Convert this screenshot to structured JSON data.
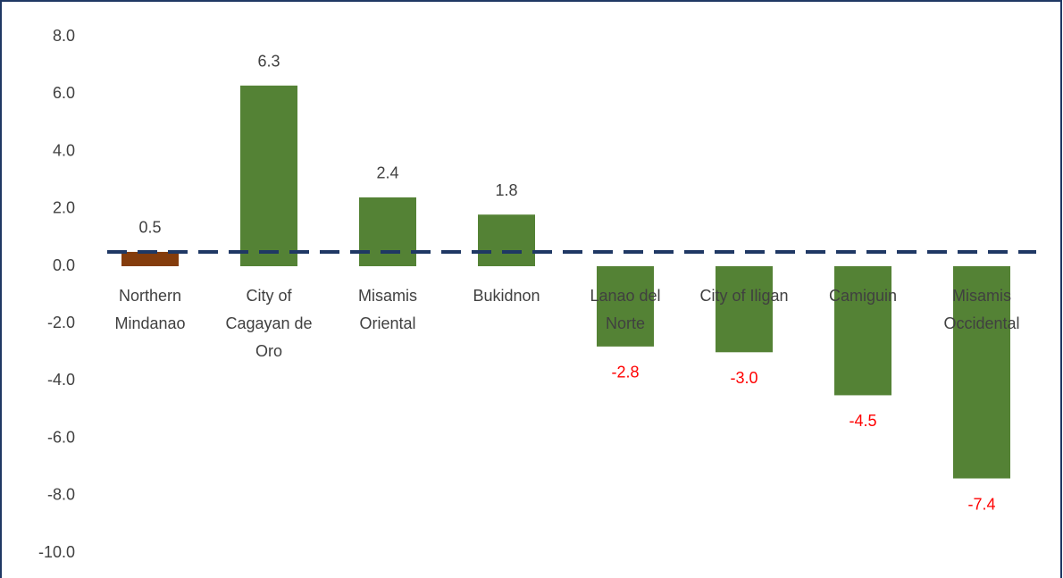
{
  "chart_data": {
    "type": "bar",
    "categories": [
      "Northern Mindanao",
      "City of Cagayan de Oro",
      "Misamis Oriental",
      "Bukidnon",
      "Lanao del Norte",
      "City of Iligan",
      "Camiguin",
      "Misamis Occidental"
    ],
    "values": [
      0.5,
      6.3,
      2.4,
      1.8,
      -2.8,
      -3.0,
      -4.5,
      -7.4
    ],
    "value_labels": [
      "0.5",
      "6.3",
      "2.4",
      "1.8",
      "-2.8",
      "-3.0",
      "-4.5",
      "-7.4"
    ],
    "colors": [
      "#843c0c",
      "#548235",
      "#548235",
      "#548235",
      "#548235",
      "#548235",
      "#548235",
      "#548235"
    ],
    "value_label_color": "#404040",
    "negative_value_label_color": "#ff0000",
    "reference_line": {
      "value": 0.5,
      "color": "#1f3864"
    },
    "ylim": [
      -10,
      8
    ],
    "yticks": [
      {
        "value": -10,
        "label": "-10.0"
      },
      {
        "value": -8,
        "label": "-8.0"
      },
      {
        "value": -6,
        "label": "-6.0"
      },
      {
        "value": -4,
        "label": "-4.0"
      },
      {
        "value": -2,
        "label": "-2.0"
      },
      {
        "value": 0,
        "label": "0.0"
      },
      {
        "value": 2,
        "label": "2.0"
      },
      {
        "value": 4,
        "label": "4.0"
      },
      {
        "value": 6,
        "label": "6.0"
      },
      {
        "value": 8,
        "label": "8.0"
      }
    ],
    "grid": false
  }
}
